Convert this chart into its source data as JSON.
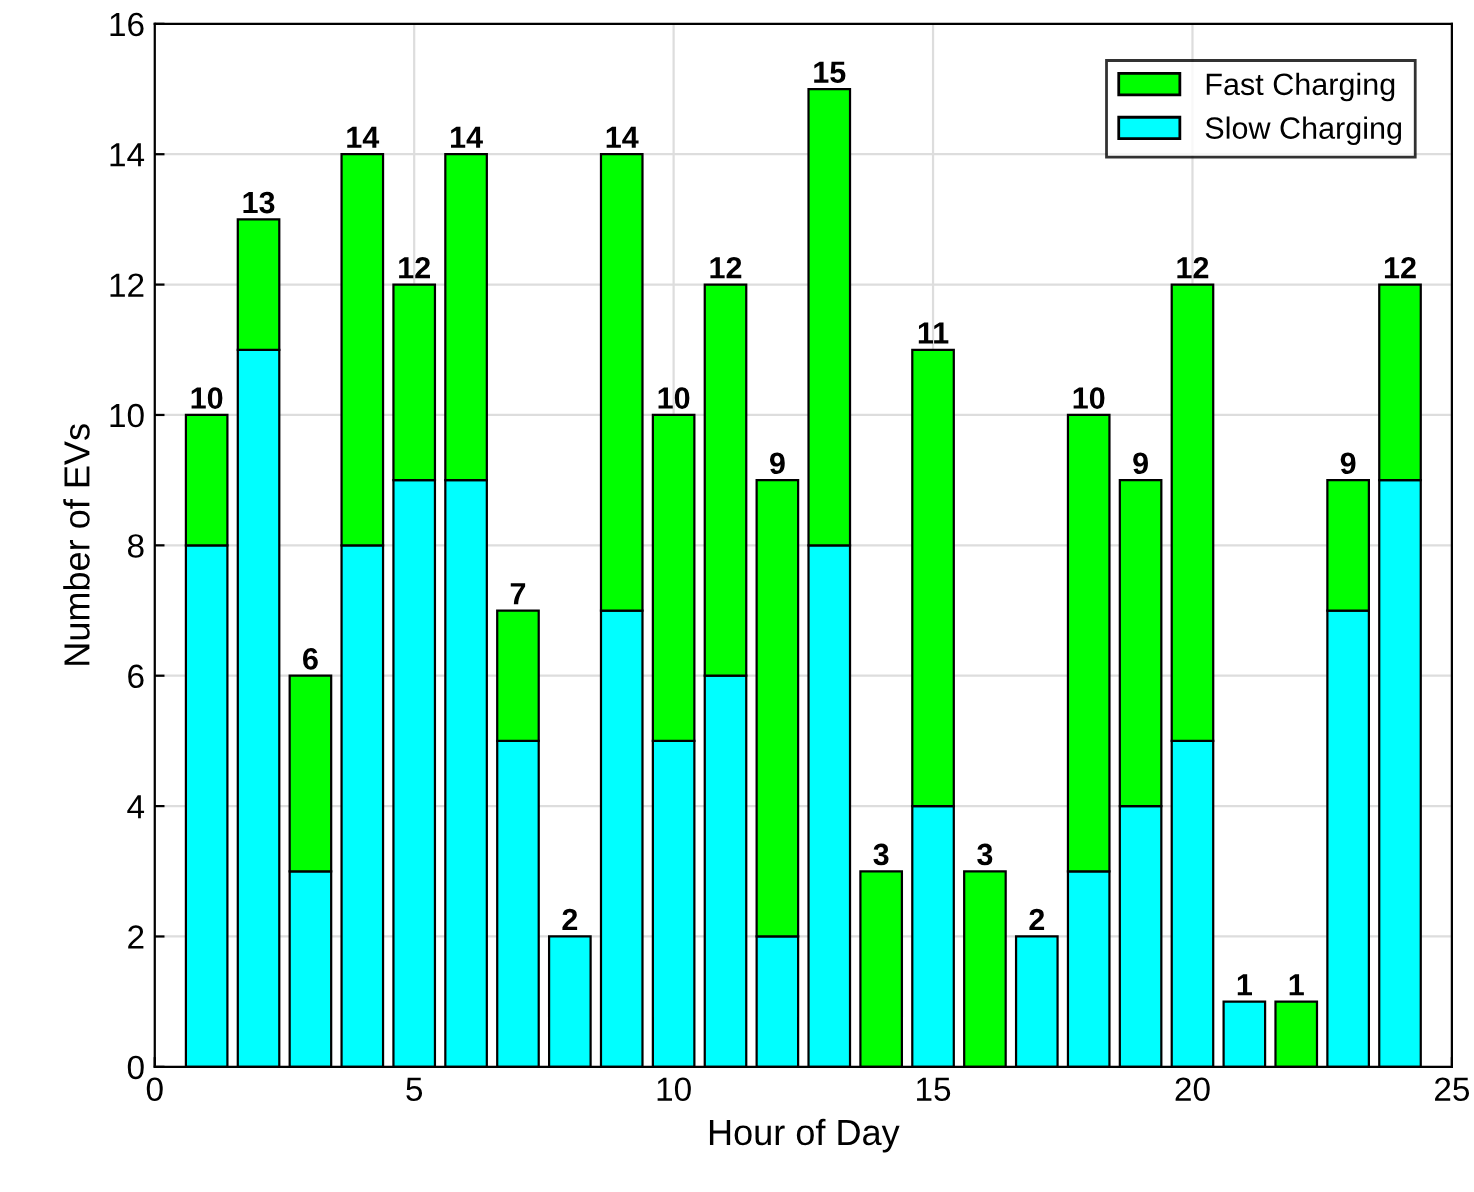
{
  "chart_data": {
    "type": "bar",
    "stacked": true,
    "xlabel": "Hour of Day",
    "ylabel": "Number of EVs",
    "x": [
      1,
      2,
      3,
      4,
      5,
      6,
      7,
      8,
      9,
      10,
      11,
      12,
      13,
      14,
      15,
      16,
      17,
      18,
      19,
      20,
      21,
      22,
      23,
      24
    ],
    "series": [
      {
        "name": "Slow Charging",
        "color": "#00ffff",
        "values": [
          8,
          11,
          3,
          8,
          9,
          9,
          5,
          2,
          7,
          5,
          6,
          2,
          8,
          0,
          4,
          0,
          2,
          3,
          4,
          5,
          1,
          0,
          7,
          9
        ]
      },
      {
        "name": "Fast Charging",
        "color": "#00ff00",
        "values": [
          2,
          2,
          3,
          6,
          3,
          5,
          2,
          0,
          7,
          5,
          6,
          7,
          7,
          3,
          7,
          3,
          0,
          7,
          5,
          7,
          0,
          1,
          2,
          3
        ]
      }
    ],
    "totals": [
      "10",
      "13",
      "6",
      "14",
      "12",
      "14",
      "7",
      "2",
      "14",
      "10",
      "12",
      "9",
      "15",
      "3",
      "11",
      "3",
      "2",
      "10",
      "9",
      "12",
      "1",
      "1",
      "9",
      "12"
    ],
    "xlim": [
      0,
      25
    ],
    "xticks": [
      0,
      5,
      10,
      15,
      20,
      25
    ],
    "ylim": [
      0,
      16
    ],
    "yticks": [
      0,
      2,
      4,
      6,
      8,
      10,
      12,
      14,
      16
    ],
    "grid": true,
    "legend": "top right"
  }
}
